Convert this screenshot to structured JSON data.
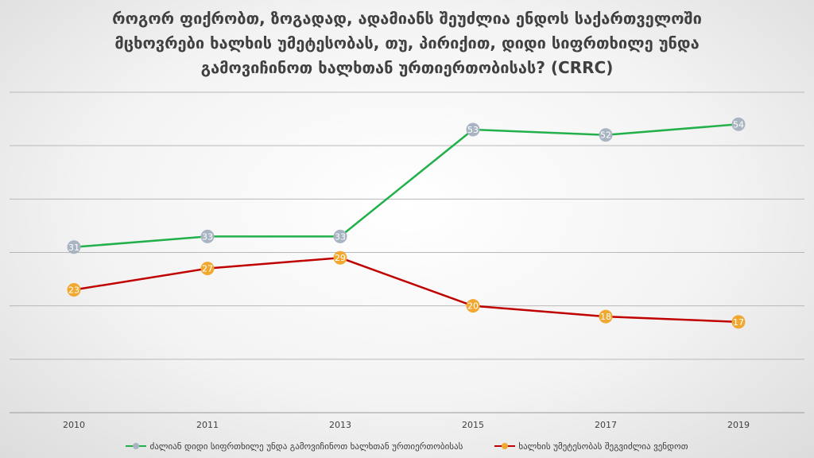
{
  "title_lines": [
    "როგორ ფიქრობთ, ზოგადად, ადამიანს შეუძლია ენდოს საქართველოში",
    "მცხოვრები ხალხის უმეტესობას, თუ, პირიქით, დიდი სიფრთხილე უნდა",
    "გამოვიჩინოთ ხალხთან ურთიერთობისას? (CRRC)"
  ],
  "chart_data": {
    "type": "line",
    "categories": [
      "2010",
      "2011",
      "2013",
      "2015",
      "2017",
      "2019"
    ],
    "series": [
      {
        "name": "ძალიან დიდი სიფრთხილე უნდა გამოვიჩინოთ ხალხთან ურთიერთობისას",
        "values": [
          31,
          33,
          33,
          53,
          52,
          54
        ],
        "line_color": "#22b04b",
        "marker_color": "#a9b4c2"
      },
      {
        "name": "ხალხის უმეტესობას შეგვიძლია ვენდოთ",
        "values": [
          23,
          27,
          29,
          20,
          18,
          17
        ],
        "line_color": "#c00000",
        "marker_color": "#f0a830"
      }
    ],
    "ylim": [
      0,
      60
    ],
    "gridlines": true,
    "legend_position": "bottom",
    "data_labels": true
  }
}
